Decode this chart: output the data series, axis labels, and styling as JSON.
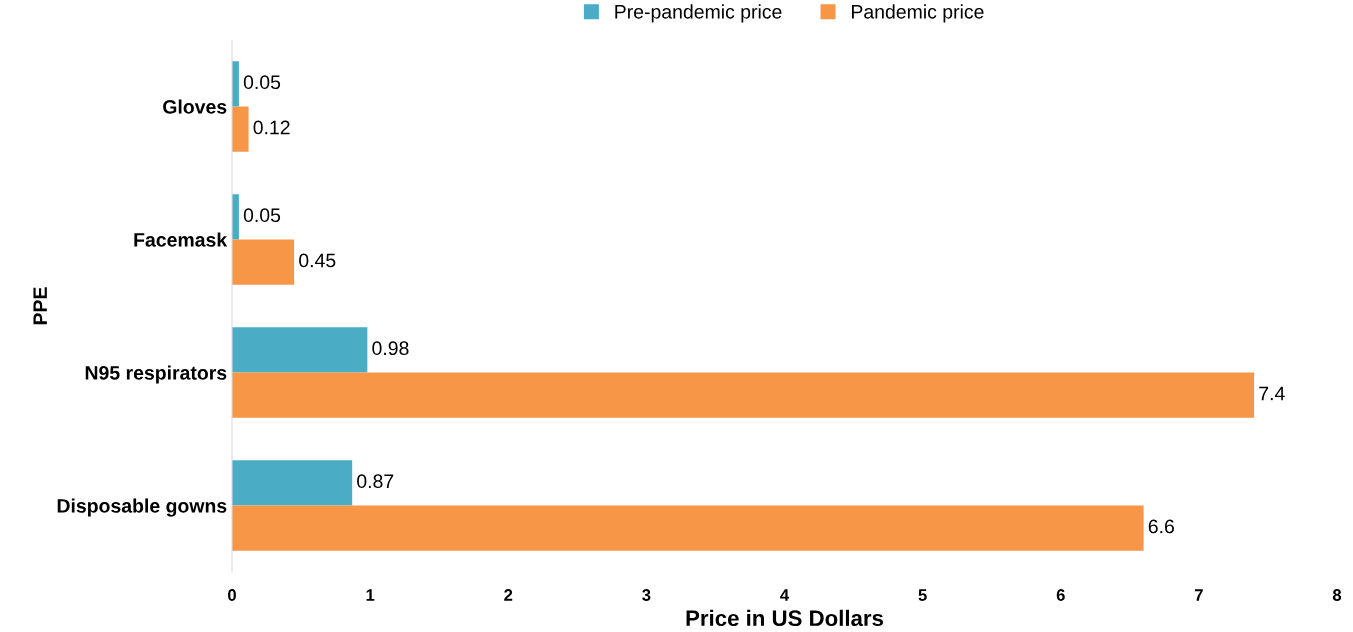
{
  "chart_data": {
    "type": "bar",
    "orientation": "horizontal",
    "xlabel": "Price in US Dollars",
    "ylabel": "PPE",
    "categories": [
      "Gloves",
      "Facemask",
      "N95 respirators",
      "Disposable gowns"
    ],
    "series": [
      {
        "name": "Pre-pandemic price",
        "color": "#4bacc6",
        "values": [
          0.05,
          0.05,
          0.98,
          0.87
        ]
      },
      {
        "name": "Pandemic price",
        "color": "#f79646",
        "values": [
          0.12,
          0.45,
          7.4,
          6.6
        ]
      }
    ],
    "xlim": [
      0,
      8
    ],
    "xticks": [
      0,
      1,
      2,
      3,
      4,
      5,
      6,
      7,
      8
    ],
    "grid": false,
    "legend": "top",
    "data_labels": true
  }
}
